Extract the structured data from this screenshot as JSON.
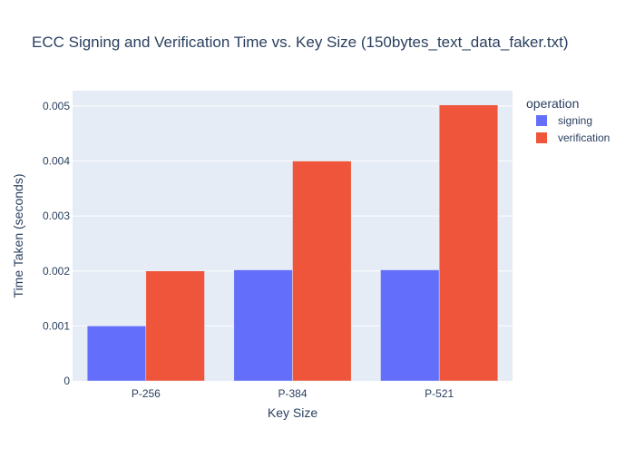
{
  "chart_data": {
    "type": "bar",
    "title": "ECC Signing and Verification Time vs. Key Size (150bytes_text_data_faker.txt)",
    "xlabel": "Key Size",
    "ylabel": "Time Taken (seconds)",
    "categories": [
      "P-256",
      "P-384",
      "P-521"
    ],
    "series": [
      {
        "name": "signing",
        "color": "#636efa",
        "values": [
          0.001,
          0.00202,
          0.00202
        ]
      },
      {
        "name": "verification",
        "color": "#ef553b",
        "values": [
          0.002,
          0.004,
          0.00502
        ]
      }
    ],
    "ylim": [
      0,
      0.00528
    ],
    "yticks": [
      0,
      0.001,
      0.002,
      0.003,
      0.004,
      0.005
    ],
    "ytick_labels": [
      "0",
      "0.001",
      "0.002",
      "0.003",
      "0.004",
      "0.005"
    ],
    "legend_title": "operation",
    "legend_position": "top-right",
    "grid": true,
    "plot_background": "#e5ecf6"
  }
}
